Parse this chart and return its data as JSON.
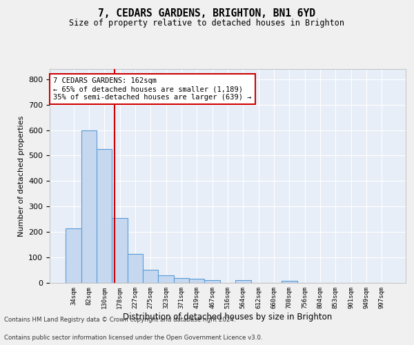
{
  "title1": "7, CEDARS GARDENS, BRIGHTON, BN1 6YD",
  "title2": "Size of property relative to detached houses in Brighton",
  "xlabel": "Distribution of detached houses by size in Brighton",
  "ylabel": "Number of detached properties",
  "categories": [
    "34sqm",
    "82sqm",
    "130sqm",
    "178sqm",
    "227sqm",
    "275sqm",
    "323sqm",
    "371sqm",
    "419sqm",
    "467sqm",
    "516sqm",
    "564sqm",
    "612sqm",
    "660sqm",
    "708sqm",
    "756sqm",
    "804sqm",
    "853sqm",
    "901sqm",
    "949sqm",
    "997sqm"
  ],
  "values": [
    215,
    600,
    525,
    255,
    115,
    52,
    30,
    20,
    15,
    10,
    0,
    10,
    0,
    0,
    8,
    0,
    0,
    0,
    0,
    0,
    0
  ],
  "bar_color": "#c5d8f0",
  "bar_edgecolor": "#5b9bd5",
  "bg_color": "#e8eef7",
  "grid_color": "#ffffff",
  "redline_x": 2.65,
  "annotation_text": "7 CEDARS GARDENS: 162sqm\n← 65% of detached houses are smaller (1,189)\n35% of semi-detached houses are larger (639) →",
  "annotation_box_facecolor": "#ffffff",
  "annotation_box_edgecolor": "#cc0000",
  "ylim": [
    0,
    840
  ],
  "yticks": [
    0,
    100,
    200,
    300,
    400,
    500,
    600,
    700,
    800
  ],
  "footer1": "Contains HM Land Registry data © Crown copyright and database right 2024.",
  "footer2": "Contains public sector information licensed under the Open Government Licence v3.0.",
  "fig_facecolor": "#f0f0f0"
}
